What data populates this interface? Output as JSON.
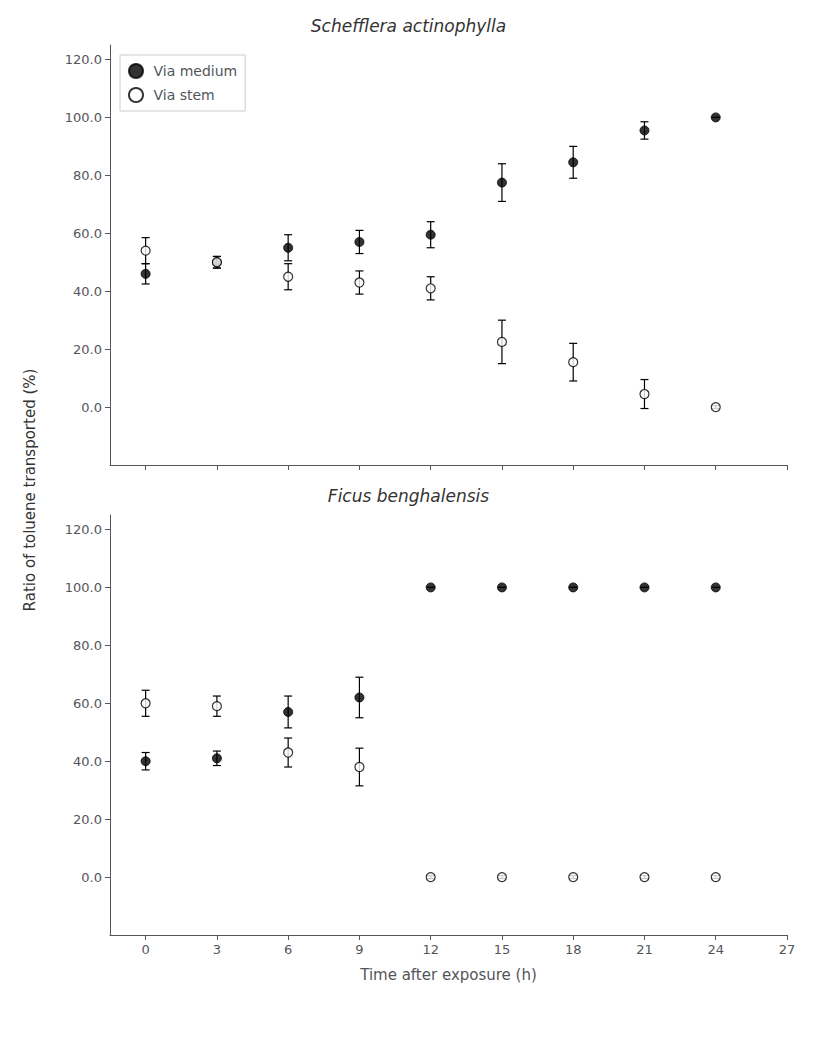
{
  "chart_data": [
    {
      "type": "scatter",
      "title": "Schefflera actinophylla",
      "x": [
        0,
        3,
        6,
        9,
        12,
        15,
        18,
        21,
        24
      ],
      "series": [
        {
          "name": "Via medium",
          "color": "black",
          "marker": "circle",
          "values": [
            46.0,
            50.0,
            55.0,
            57.0,
            59.5,
            77.5,
            84.5,
            95.5,
            100.0
          ],
          "errors": [
            3.5,
            2.0,
            4.5,
            4.0,
            4.5,
            6.5,
            5.5,
            3.0,
            0.0
          ]
        },
        {
          "name": "Via stem",
          "color": "black",
          "marker": "emptyCircle",
          "values": [
            54.0,
            50.0,
            45.0,
            43.0,
            41.0,
            22.5,
            15.5,
            4.5,
            0.0
          ],
          "errors": [
            4.5,
            2.0,
            4.5,
            4.0,
            4.0,
            7.5,
            6.5,
            5.0,
            0.5
          ]
        }
      ],
      "xlim": [
        -1.5,
        27
      ],
      "xticks": [
        0,
        3,
        6,
        9,
        12,
        15,
        18,
        21,
        24,
        27
      ],
      "ylim": [
        -20.0,
        125.0
      ],
      "yticks": [
        {
          "value": 0.0,
          "label": "0.0"
        },
        {
          "value": 20.0,
          "label": "20.0"
        },
        {
          "value": 40.0,
          "label": "40.0"
        },
        {
          "value": 60.0,
          "label": "60.0"
        },
        {
          "value": 80.0,
          "label": "80.0"
        },
        {
          "value": 100.0,
          "label": "100.0"
        },
        {
          "value": 120.0,
          "label": "120.0"
        }
      ],
      "ylabel": "Ratio of toluene transported (%)",
      "tick_labels": "y",
      "legend": "upper left",
      "grid": false
    },
    {
      "type": "scatter",
      "title": "Ficus benghalensis",
      "x": [
        0,
        3,
        6,
        9,
        12,
        15,
        18,
        21,
        24
      ],
      "series": [
        {
          "name": "Via medium",
          "color": "black",
          "marker": "circle",
          "values": [
            40.0,
            41.0,
            57.0,
            62.0,
            100.0,
            100.0,
            100.0,
            100.0,
            100.0
          ],
          "errors": [
            3.0,
            2.5,
            5.5,
            7.0,
            0.0,
            0.0,
            0.0,
            0.0,
            0.0
          ]
        },
        {
          "name": "Via stem",
          "color": "black",
          "marker": "emptyCircle",
          "values": [
            60.0,
            59.0,
            43.0,
            38.0,
            0.0,
            0.0,
            0.0,
            0.0,
            0.0
          ],
          "errors": [
            4.5,
            3.5,
            5.0,
            6.5,
            0.5,
            0.5,
            0.5,
            0.5,
            0.5
          ]
        }
      ],
      "xlim": [
        -1.5,
        27
      ],
      "xticks": [
        0,
        3,
        6,
        9,
        12,
        15,
        18,
        21,
        24,
        27
      ],
      "ylim": [
        -20.0,
        125.0
      ],
      "yticks": [
        {
          "value": 0.0,
          "label": "0.0"
        },
        {
          "value": 20.0,
          "label": "20.0"
        },
        {
          "value": 40.0,
          "label": "40.0"
        },
        {
          "value": 60.0,
          "label": "60.0"
        },
        {
          "value": 80.0,
          "label": "80.0"
        },
        {
          "value": 100.0,
          "label": "100.0"
        },
        {
          "value": 120.0,
          "label": "120.0"
        }
      ],
      "xlabel": "Time after exposure (h)",
      "grid": false
    }
  ]
}
